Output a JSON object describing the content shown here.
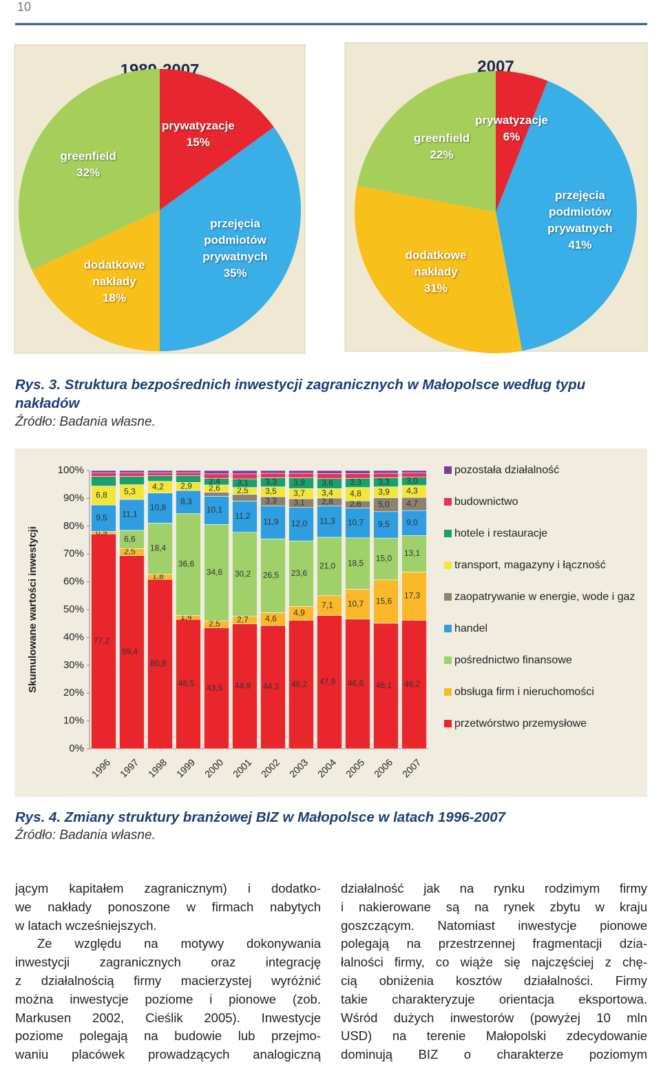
{
  "header": {
    "page_number": "10"
  },
  "chart_data": [
    {
      "type": "pie",
      "title": "1989-2007",
      "categories": [
        "prywatyzacje",
        "przejęcia podmiotów prywatnych",
        "dodatkowe nakłady",
        "greenfield"
      ],
      "values": [
        15,
        35,
        18,
        32
      ],
      "value_labels": [
        "15%",
        "35%",
        "18%",
        "32%"
      ],
      "colors": [
        "#e8262f",
        "#3aaee6",
        "#f8c01a",
        "#a5cf5a"
      ]
    },
    {
      "type": "pie",
      "title": "2007",
      "categories": [
        "prywatyzacje",
        "przejęcia podmiotów prywatnych",
        "dodatkowe nakłady",
        "greenfield"
      ],
      "values": [
        6,
        41,
        31,
        22
      ],
      "value_labels": [
        "6%",
        "41%",
        "31%",
        "22%"
      ],
      "colors": [
        "#e8262f",
        "#3aaee6",
        "#f8c01a",
        "#a5cf5a"
      ]
    },
    {
      "type": "stacked-bar",
      "ylabel": "Skumulowane wartości inwestycji",
      "categories": [
        "1996",
        "1997",
        "1998",
        "1999",
        "2000",
        "2001",
        "2002",
        "2003",
        "2004",
        "2005",
        "2006",
        "2007"
      ],
      "ylim": [
        0,
        100
      ],
      "yticks": [
        {
          "value": 0,
          "label": "0%"
        },
        {
          "value": 10,
          "label": "10%"
        },
        {
          "value": 20,
          "label": "20%"
        },
        {
          "value": 30,
          "label": "30%"
        },
        {
          "value": 40,
          "label": "40%"
        },
        {
          "value": 50,
          "label": "50%"
        },
        {
          "value": 60,
          "label": "60%"
        },
        {
          "value": 70,
          "label": "70%"
        },
        {
          "value": 80,
          "label": "80%"
        },
        {
          "value": 90,
          "label": "90%"
        },
        {
          "value": 100,
          "label": "100%"
        }
      ],
      "series": [
        {
          "name": "przetwórstwo przemysłowe",
          "color": "#e8262c",
          "values": [
            77.2,
            69.4,
            60.9,
            46.5,
            43.5,
            44.9,
            44.3,
            46.2,
            47.9,
            46.6,
            45.1,
            46.2
          ],
          "value_labels": [
            "77,2",
            "69,4",
            "60,9",
            "46,5",
            "43,5",
            "44,9",
            "44,3",
            "46,2",
            "47,9",
            "46,6",
            "45,1",
            "46,2"
          ]
        },
        {
          "name": "obsługa firm i nieruchomości",
          "color": "#fbb829",
          "values": [
            0.9,
            2.5,
            1.8,
            1.4,
            2.5,
            2.7,
            4.6,
            4.9,
            7.1,
            10.7,
            15.6,
            17.3
          ],
          "value_labels": [
            "0,9",
            "2,5",
            "1,8",
            "1,4",
            "2,5",
            "2,7",
            "4,6",
            "4,9",
            "7,1",
            "10,7",
            "15,6",
            "17,3"
          ]
        },
        {
          "name": "pośrednictwo finansowe",
          "color": "#9fd06a",
          "values": [
            null,
            6.6,
            18.4,
            36.6,
            34.6,
            30.2,
            26.5,
            23.6,
            21.0,
            18.5,
            15.0,
            13.1
          ],
          "value_labels": [
            null,
            "6,6",
            "18,4",
            "36,6",
            "34,6",
            "30,2",
            "26,5",
            "23,6",
            "21,0",
            "18,5",
            "15,0",
            "13,1"
          ]
        },
        {
          "name": "handel",
          "color": "#2e9ee0",
          "values": [
            9.5,
            11.1,
            10.8,
            8.3,
            10.1,
            11.2,
            11.9,
            12.0,
            11.3,
            10.7,
            9.5,
            9.0
          ],
          "value_labels": [
            "9,5",
            "11,1",
            "10,8",
            "8,3",
            "10,1",
            "11,2",
            "11,9",
            "12,0",
            "11,3",
            "10,7",
            "9,5",
            "9,0"
          ]
        },
        {
          "name": "zaopatrywanie w energie, wode i gaz",
          "color": "#8c8270",
          "values": [
            null,
            null,
            null,
            null,
            1.5,
            2.4,
            3.3,
            3.1,
            2.8,
            2.6,
            5.0,
            4.7
          ],
          "value_labels": [
            null,
            null,
            null,
            null,
            null,
            null,
            "3,3",
            "3,1",
            "2,8",
            "2,6",
            "5,0",
            "4,7"
          ]
        },
        {
          "name": "transport, magazyny i łączność",
          "color": "#f2e63a",
          "values": [
            6.8,
            5.3,
            4.2,
            2.9,
            2.6,
            2.5,
            3.5,
            3.7,
            3.4,
            4.8,
            3.9,
            4.3
          ],
          "value_labels": [
            "6,8",
            "5,3",
            "4,2",
            "2,9",
            "2,6",
            "2,5",
            "3,5",
            "3,7",
            "3,4",
            "4,8",
            "3,9",
            "4,3"
          ]
        },
        {
          "name": "hotele i restauracje",
          "color": "#1aa06a",
          "values": [
            3.5,
            3.0,
            2.0,
            2.4,
            2.4,
            3.1,
            3.3,
            3.9,
            3.6,
            3.3,
            3.3,
            3.0
          ],
          "value_labels": [
            null,
            null,
            null,
            null,
            "2,4",
            "3,1",
            "3,3",
            "3,9",
            "3,6",
            "3,3",
            "3,3",
            "3,0"
          ]
        },
        {
          "name": "budownictwo",
          "color": "#e8325a",
          "values": [
            1.2,
            1.2,
            1.1,
            1.1,
            1.6,
            1.8,
            1.6,
            1.6,
            1.8,
            1.7,
            1.6,
            1.5
          ]
        },
        {
          "name": "pozostała działalność",
          "color": "#7b3f9a",
          "values": [
            0.9,
            0.9,
            0.8,
            0.8,
            1.2,
            1.2,
            1.0,
            1.0,
            1.1,
            1.1,
            1.0,
            0.9
          ]
        }
      ]
    }
  ],
  "captions": [
    {
      "title": "Rys. 3. Struktura bezpośrednich inwestycji zagranicznych w Małopolsce według typu nakładów",
      "source": "Źródło: Badania własne."
    },
    {
      "title": "Rys. 4. Zmiany struktury branżowej BIZ w Małopolsce w latach 1996-2007",
      "source": "Źródło: Badania własne."
    }
  ],
  "body": {
    "left": [
      "jącym kapitałem zagranicznym) i dodatko-",
      "we nakłady ponoszone w firmach nabytych",
      "w latach wcześniejszych.",
      "Ze względu na motywy dokonywania",
      "inwestycji zagranicznych oraz integrację",
      "z działalnością firmy macierzystej wyróżnić",
      "można inwestycje poziome i pionowe (zob.",
      "Markusen 2002, Cieślik 2005). Inwestycje",
      "poziome polegają na budowie lub przejmo-",
      "waniu placówek prowadzących analogiczną"
    ],
    "right": [
      "działalność jak na rynku rodzimym firmy",
      "i nakierowane są na rynek zbytu w kraju",
      "goszczącym. Natomiast inwestycje pionowe",
      "polegają na przestrzennej fragmentacji dzia-",
      "łalności firmy, co wiąże się najczęściej z chę-",
      "cią obniżenia kosztów działalności. Firmy",
      "takie charakteryzuje orientacja eksportowa.",
      "Wśród dużych inwestorów (powyżej 10 mln",
      "USD) na terenie Małopolski zdecydowanie",
      "dominują BIZ o charakterze poziomym"
    ]
  }
}
